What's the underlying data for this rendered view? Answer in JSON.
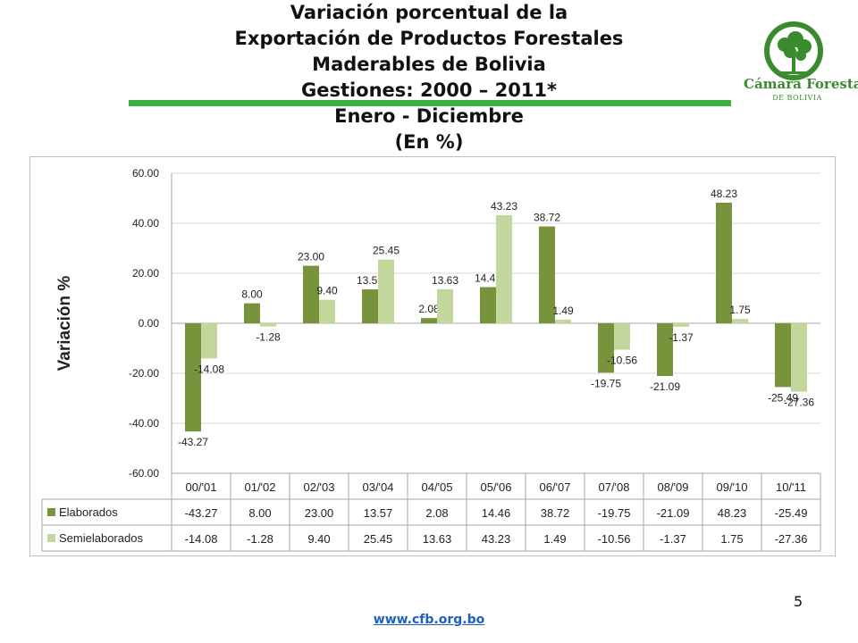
{
  "header": {
    "title_lines": [
      "Variación porcentual de la",
      "Exportación de Productos Forestales",
      "Maderables de Bolivia",
      "Gestiones: 2000 – 2011*",
      "Enero - Diciembre",
      "(En %)"
    ]
  },
  "logo": {
    "name": "Cámara Forestal",
    "sub": "DE BOLIVIA"
  },
  "colors": {
    "elaborados": "#77933c",
    "semielaborados": "#c3d69b",
    "brand_green": "#3cb043"
  },
  "chart_data": {
    "type": "bar",
    "ylabel": "Variación %",
    "ylim": [
      -60,
      60
    ],
    "yticks": [
      60,
      40,
      20,
      0,
      -20,
      -40,
      -60
    ],
    "ytick_labels": [
      "60.00",
      "40.00",
      "20.00",
      "0.00",
      "-20.00",
      "-40.00",
      "-60.00"
    ],
    "categories": [
      "00/'01",
      "01/'02",
      "02/'03",
      "03/'04",
      "04/'05",
      "05/'06",
      "06/'07",
      "07/'08",
      "08/'09",
      "09/'10",
      "10/'11"
    ],
    "series": [
      {
        "name": "Elaborados",
        "values": [
          -43.27,
          8.0,
          23.0,
          13.57,
          2.08,
          14.46,
          38.72,
          -19.75,
          -21.09,
          48.23,
          -25.49
        ],
        "labels": [
          "-43.27",
          "8.00",
          "23.00",
          "13.57",
          "2.08",
          "14.46",
          "38.72",
          "-19.75",
          "-21.09",
          "48.23",
          "-25.49"
        ]
      },
      {
        "name": "Semielaborados",
        "values": [
          -14.08,
          -1.28,
          9.4,
          25.45,
          13.63,
          43.23,
          1.49,
          -10.56,
          -1.37,
          1.75,
          -27.36
        ],
        "labels": [
          "-14.08",
          "-1.28",
          "9.40",
          "25.45",
          "13.63",
          "43.23",
          "1.49",
          "-10.56",
          "-1.37",
          "1.75",
          "-27.36"
        ]
      }
    ],
    "data_table": true
  },
  "footer": {
    "page_number": "5",
    "url": "www.cfb.org.bo"
  }
}
